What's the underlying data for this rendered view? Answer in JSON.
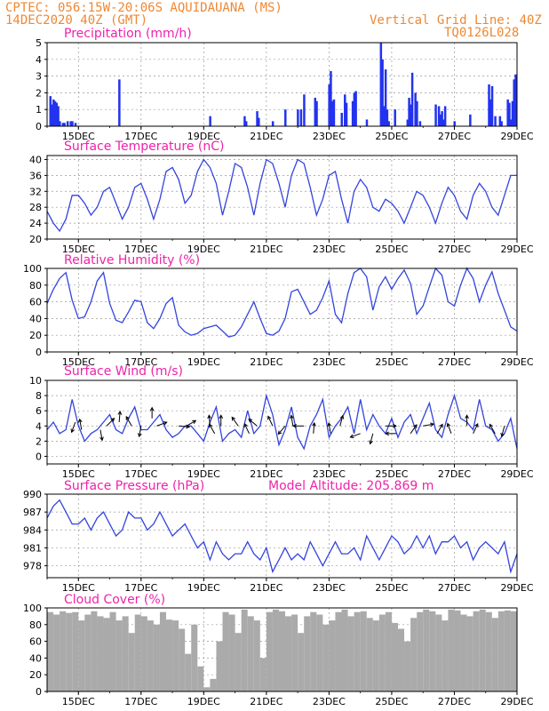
{
  "header": {
    "line1": "CPTEC:   056:15W-20:06S   AQUIDAUANA (MS)",
    "line2": "14DEC2020 40Z (GMT)",
    "right1": "Vertical Grid Line: 40Z",
    "right2": "TQ0126L028"
  },
  "colors": {
    "line": "#3344dd",
    "bar": "#2233ee",
    "cloud": "#aaaaaa",
    "title": "#ee22aa",
    "header": "#ee8833"
  },
  "x_domain": [
    0,
    15
  ],
  "x_ticks": [
    {
      "t": 1,
      "label": "15DEC"
    },
    {
      "t": 3,
      "label": "17DEC"
    },
    {
      "t": 5,
      "label": "19DEC"
    },
    {
      "t": 7,
      "label": "21DEC"
    },
    {
      "t": 9,
      "label": "23DEC"
    },
    {
      "t": 11,
      "label": "25DEC"
    },
    {
      "t": 13,
      "label": "27DEC"
    },
    {
      "t": 15,
      "label": "29DEC"
    }
  ],
  "panels": {
    "precip": {
      "title": "Precipitation (mm/h)",
      "ylim": [
        0,
        5
      ],
      "yticks": [
        0,
        1,
        2,
        3,
        4,
        5
      ]
    },
    "temp": {
      "title": "Surface Temperature (nC)",
      "ylim": [
        20,
        41
      ],
      "yticks": [
        20,
        24,
        28,
        32,
        36,
        40
      ]
    },
    "rh": {
      "title": "Relative Humidity (%)",
      "ylim": [
        0,
        100
      ],
      "yticks": [
        0,
        20,
        40,
        60,
        80,
        100
      ]
    },
    "wind": {
      "title": "Surface Wind (m/s)",
      "ylim": [
        -1,
        10
      ],
      "yticks": [
        0,
        2,
        4,
        6,
        8,
        10
      ]
    },
    "pres": {
      "title": "Surface Pressure (hPa)",
      "subtitle": "Model Altitude: 205.869 m",
      "ylim": [
        976,
        990
      ],
      "yticks": [
        978,
        981,
        984,
        987,
        990
      ]
    },
    "cloud": {
      "title": "Cloud Cover (%)",
      "ylim": [
        0,
        100
      ],
      "yticks": [
        0,
        20,
        40,
        60,
        80,
        100
      ]
    }
  },
  "chart_data": [
    {
      "type": "bar",
      "name": "precipitation",
      "x": [
        0.1,
        0.15,
        0.2,
        0.25,
        0.3,
        0.35,
        0.4,
        0.5,
        0.55,
        0.65,
        0.75,
        0.8,
        0.9,
        2.3,
        5.2,
        6.3,
        6.35,
        6.7,
        6.75,
        7.2,
        7.6,
        8.0,
        8.1,
        8.2,
        8.55,
        8.6,
        9.0,
        9.05,
        9.1,
        9.15,
        9.4,
        9.5,
        9.55,
        9.75,
        9.8,
        9.85,
        10.2,
        10.65,
        10.7,
        10.75,
        10.8,
        10.85,
        10.9,
        11.1,
        11.5,
        11.55,
        11.6,
        11.65,
        11.75,
        11.8,
        11.9,
        12.4,
        12.5,
        12.55,
        12.6,
        12.65,
        12.7,
        13.0,
        13.5,
        14.1,
        14.15,
        14.2,
        14.3,
        14.45,
        14.5,
        14.7,
        14.75,
        14.8,
        14.85,
        14.9,
        14.95
      ],
      "values": [
        1.8,
        1.3,
        1.6,
        1.5,
        1.4,
        1.2,
        0.3,
        0.2,
        0.2,
        0.3,
        0.3,
        0.3,
        0.2,
        2.8,
        0.6,
        0.6,
        0.3,
        0.9,
        0.5,
        0.3,
        1.0,
        1.0,
        1.0,
        1.9,
        1.7,
        1.5,
        2.5,
        3.3,
        1.5,
        1.6,
        0.8,
        1.9,
        1.4,
        1.5,
        2.0,
        2.1,
        0.4,
        5.0,
        4.0,
        1.2,
        3.4,
        1.0,
        0.3,
        1.0,
        0.4,
        1.7,
        1.3,
        3.2,
        2.0,
        1.5,
        0.3,
        1.3,
        1.2,
        0.7,
        0.9,
        0.4,
        1.2,
        0.3,
        0.7,
        2.5,
        1.6,
        2.4,
        0.6,
        0.6,
        0.3,
        1.6,
        1.4,
        0.4,
        1.5,
        2.8,
        3.1
      ]
    },
    {
      "type": "line",
      "name": "surface temperature",
      "x": [
        0,
        0.2,
        0.4,
        0.6,
        0.8,
        1.0,
        1.2,
        1.4,
        1.6,
        1.8,
        2.0,
        2.2,
        2.4,
        2.6,
        2.8,
        3.0,
        3.2,
        3.4,
        3.6,
        3.8,
        4.0,
        4.2,
        4.4,
        4.6,
        4.8,
        5.0,
        5.2,
        5.4,
        5.6,
        5.8,
        6.0,
        6.2,
        6.4,
        6.6,
        6.8,
        7.0,
        7.2,
        7.4,
        7.6,
        7.8,
        8.0,
        8.2,
        8.4,
        8.6,
        8.8,
        9.0,
        9.2,
        9.4,
        9.6,
        9.8,
        10.0,
        10.2,
        10.4,
        10.6,
        10.8,
        11.0,
        11.2,
        11.4,
        11.6,
        11.8,
        12.0,
        12.2,
        12.4,
        12.6,
        12.8,
        13.0,
        13.2,
        13.4,
        13.6,
        13.8,
        14.0,
        14.2,
        14.4,
        14.6,
        14.8,
        15.0
      ],
      "values": [
        27,
        24,
        22,
        25,
        31,
        31,
        29,
        26,
        28,
        32,
        33,
        29,
        25,
        28,
        33,
        34,
        30,
        25,
        30,
        37,
        38,
        35,
        29,
        31,
        37,
        40,
        38,
        34,
        26,
        32,
        39,
        38,
        33,
        26,
        34,
        40,
        39,
        34,
        28,
        36,
        40,
        39,
        33,
        26,
        30,
        36,
        37,
        30,
        24,
        32,
        35,
        33,
        28,
        27,
        30,
        29,
        27,
        24,
        28,
        32,
        31,
        28,
        24,
        29,
        33,
        31,
        27,
        25,
        31,
        34,
        32,
        28,
        26,
        31,
        36,
        36
      ]
    },
    {
      "type": "line",
      "name": "relative humidity",
      "x": [
        0,
        0.2,
        0.4,
        0.6,
        0.8,
        1.0,
        1.2,
        1.4,
        1.6,
        1.8,
        2.0,
        2.2,
        2.4,
        2.6,
        2.8,
        3.0,
        3.2,
        3.4,
        3.6,
        3.8,
        4.0,
        4.2,
        4.4,
        4.6,
        4.8,
        5.0,
        5.2,
        5.4,
        5.6,
        5.8,
        6.0,
        6.2,
        6.4,
        6.6,
        6.8,
        7.0,
        7.2,
        7.4,
        7.6,
        7.8,
        8.0,
        8.2,
        8.4,
        8.6,
        8.8,
        9.0,
        9.2,
        9.4,
        9.6,
        9.8,
        10.0,
        10.2,
        10.4,
        10.6,
        10.8,
        11.0,
        11.2,
        11.4,
        11.6,
        11.8,
        12.0,
        12.2,
        12.4,
        12.6,
        12.8,
        13.0,
        13.2,
        13.4,
        13.6,
        13.8,
        14.0,
        14.2,
        14.4,
        14.6,
        14.8,
        15.0
      ],
      "values": [
        58,
        75,
        88,
        95,
        62,
        40,
        42,
        60,
        85,
        95,
        58,
        38,
        35,
        48,
        62,
        60,
        35,
        28,
        40,
        58,
        65,
        32,
        24,
        20,
        22,
        28,
        30,
        32,
        25,
        18,
        20,
        30,
        45,
        60,
        40,
        22,
        20,
        25,
        40,
        72,
        75,
        60,
        45,
        50,
        65,
        85,
        45,
        35,
        70,
        95,
        100,
        90,
        50,
        78,
        90,
        75,
        88,
        98,
        82,
        45,
        55,
        78,
        100,
        92,
        60,
        55,
        80,
        100,
        88,
        60,
        80,
        96,
        70,
        50,
        30,
        25
      ]
    },
    {
      "type": "line",
      "name": "surface wind speed",
      "x": [
        0,
        0.2,
        0.4,
        0.6,
        0.8,
        1.0,
        1.2,
        1.4,
        1.6,
        1.8,
        2.0,
        2.2,
        2.4,
        2.6,
        2.8,
        3.0,
        3.2,
        3.4,
        3.6,
        3.8,
        4.0,
        4.2,
        4.4,
        4.6,
        4.8,
        5.0,
        5.2,
        5.4,
        5.6,
        5.8,
        6.0,
        6.2,
        6.4,
        6.6,
        6.8,
        7.0,
        7.2,
        7.4,
        7.6,
        7.8,
        8.0,
        8.2,
        8.4,
        8.6,
        8.8,
        9.0,
        9.2,
        9.4,
        9.6,
        9.8,
        10.0,
        10.2,
        10.4,
        10.6,
        10.8,
        11.0,
        11.2,
        11.4,
        11.6,
        11.8,
        12.0,
        12.2,
        12.4,
        12.6,
        12.8,
        13.0,
        13.2,
        13.4,
        13.6,
        13.8,
        14.0,
        14.2,
        14.4,
        14.6,
        14.8,
        15.0
      ],
      "values": [
        3.5,
        4.5,
        3.0,
        3.5,
        7.5,
        4.0,
        2.0,
        3.0,
        3.5,
        4.5,
        5.5,
        3.5,
        3.0,
        5.0,
        6.5,
        3.5,
        3.5,
        4.5,
        5.5,
        3.5,
        2.5,
        3.0,
        4.0,
        4.0,
        3.0,
        2.0,
        4.5,
        6.5,
        2.0,
        3.0,
        3.5,
        2.5,
        6.0,
        3.0,
        4.0,
        8.0,
        5.5,
        1.5,
        3.5,
        6.5,
        2.5,
        1.0,
        4.0,
        5.5,
        7.5,
        2.5,
        4.0,
        5.0,
        6.5,
        3.0,
        7.5,
        3.5,
        5.5,
        4.0,
        3.0,
        5.0,
        2.5,
        4.5,
        5.5,
        3.0,
        5.0,
        7.0,
        3.5,
        2.5,
        5.5,
        8.0,
        5.0,
        4.5,
        3.5,
        7.5,
        4.0,
        3.5,
        2.0,
        3.0,
        5.0,
        1.0
      ]
    },
    {
      "type": "line",
      "name": "surface pressure",
      "x": [
        0,
        0.2,
        0.4,
        0.6,
        0.8,
        1.0,
        1.2,
        1.4,
        1.6,
        1.8,
        2.0,
        2.2,
        2.4,
        2.6,
        2.8,
        3.0,
        3.2,
        3.4,
        3.6,
        3.8,
        4.0,
        4.2,
        4.4,
        4.6,
        4.8,
        5.0,
        5.2,
        5.4,
        5.6,
        5.8,
        6.0,
        6.2,
        6.4,
        6.6,
        6.8,
        7.0,
        7.2,
        7.4,
        7.6,
        7.8,
        8.0,
        8.2,
        8.4,
        8.6,
        8.8,
        9.0,
        9.2,
        9.4,
        9.6,
        9.8,
        10.0,
        10.2,
        10.4,
        10.6,
        10.8,
        11.0,
        11.2,
        11.4,
        11.6,
        11.8,
        12.0,
        12.2,
        12.4,
        12.6,
        12.8,
        13.0,
        13.2,
        13.4,
        13.6,
        13.8,
        14.0,
        14.2,
        14.4,
        14.6,
        14.8,
        15.0
      ],
      "values": [
        986,
        988,
        989,
        987,
        985,
        985,
        986,
        984,
        986,
        987,
        985,
        983,
        984,
        987,
        986,
        986,
        984,
        985,
        987,
        985,
        983,
        984,
        985,
        983,
        981,
        982,
        979,
        982,
        980,
        979,
        980,
        980,
        982,
        980,
        979,
        981,
        977,
        979,
        981,
        979,
        980,
        979,
        982,
        980,
        978,
        980,
        982,
        980,
        980,
        981,
        979,
        983,
        981,
        979,
        981,
        983,
        982,
        980,
        981,
        983,
        981,
        983,
        980,
        982,
        982,
        983,
        981,
        982,
        979,
        981,
        982,
        981,
        980,
        982,
        977,
        980
      ]
    },
    {
      "type": "bar",
      "name": "cloud cover",
      "x": [
        0.1,
        0.3,
        0.5,
        0.7,
        0.9,
        1.1,
        1.3,
        1.5,
        1.7,
        1.9,
        2.1,
        2.3,
        2.5,
        2.7,
        2.9,
        3.1,
        3.3,
        3.5,
        3.7,
        3.9,
        4.1,
        4.3,
        4.5,
        4.7,
        4.9,
        5.1,
        5.3,
        5.5,
        5.7,
        5.9,
        6.1,
        6.3,
        6.5,
        6.7,
        6.9,
        7.1,
        7.3,
        7.5,
        7.7,
        7.9,
        8.1,
        8.3,
        8.5,
        8.7,
        8.9,
        9.1,
        9.3,
        9.5,
        9.7,
        9.9,
        10.1,
        10.3,
        10.5,
        10.7,
        10.9,
        11.1,
        11.3,
        11.5,
        11.7,
        11.9,
        12.1,
        12.3,
        12.5,
        12.7,
        12.9,
        13.1,
        13.3,
        13.5,
        13.7,
        13.9,
        14.1,
        14.3,
        14.5,
        14.7,
        14.9
      ],
      "values": [
        95,
        92,
        96,
        94,
        95,
        85,
        92,
        96,
        90,
        88,
        95,
        85,
        90,
        70,
        92,
        90,
        85,
        80,
        95,
        86,
        85,
        75,
        45,
        80,
        30,
        5,
        15,
        60,
        95,
        92,
        70,
        98,
        90,
        85,
        40,
        95,
        98,
        96,
        90,
        92,
        70,
        90,
        95,
        92,
        80,
        85,
        95,
        98,
        90,
        95,
        96,
        88,
        85,
        92,
        95,
        82,
        75,
        60,
        88,
        95,
        98,
        96,
        92,
        85,
        98,
        97,
        92,
        90,
        96,
        98,
        95,
        88,
        96,
        97,
        96
      ]
    },
    {
      "type": "vector",
      "name": "wind direction arrows",
      "x": [
        0.9,
        1.1,
        1.7,
        1.9,
        2.3,
        2.7,
        3.0,
        3.35,
        3.5,
        4.2,
        4.45,
        5.2,
        5.35,
        5.55,
        6.1,
        6.45,
        6.7,
        7.2,
        7.6,
        7.85,
        8.2,
        8.5,
        9.05,
        9.35,
        10.0,
        10.4,
        10.8,
        11.15,
        11.6,
        12.0,
        12.45,
        12.9,
        13.4,
        13.6,
        14.3,
        14.6
      ],
      "y": [
        4.5,
        3.5,
        3.5,
        4.0,
        4.5,
        4.0,
        4.0,
        5.0,
        4.0,
        4.0,
        4.0,
        4.0,
        3.0,
        4.0,
        4.0,
        3.0,
        4.0,
        4.0,
        4.0,
        4.0,
        4.0,
        3.0,
        3.0,
        4.0,
        3.0,
        3.0,
        4.0,
        3.0,
        3.0,
        4.0,
        3.0,
        3.0,
        4.0,
        3.0,
        3.0,
        4.0
      ],
      "angle_deg": [
        250,
        100,
        280,
        45,
        85,
        120,
        260,
        90,
        20,
        -5,
        30,
        95,
        120,
        90,
        125,
        115,
        140,
        115,
        230,
        100,
        180,
        85,
        100,
        75,
        200,
        255,
        0,
        180,
        55,
        10,
        60,
        110,
        90,
        65,
        120,
        255
      ]
    }
  ]
}
